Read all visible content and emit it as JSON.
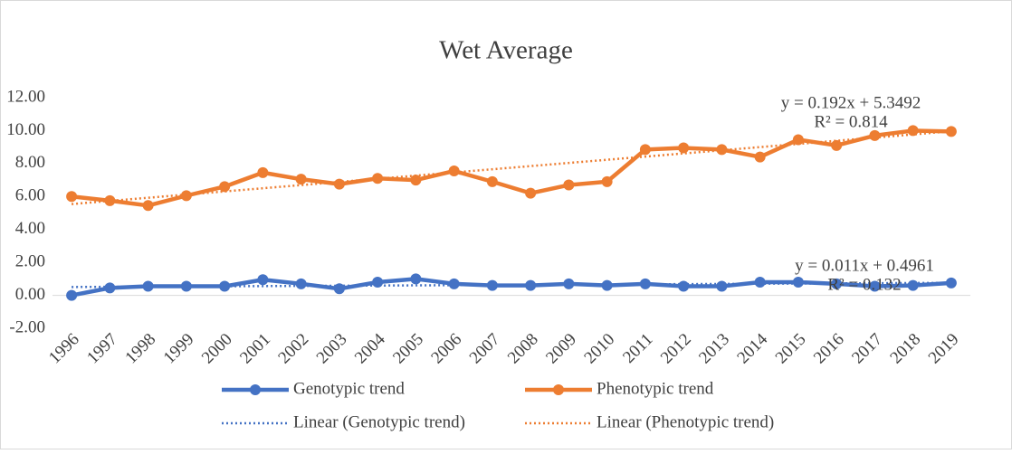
{
  "chart_data": {
    "type": "line",
    "title": "Wet Average",
    "categories": [
      "1996",
      "1997",
      "1998",
      "1999",
      "2000",
      "2001",
      "2002",
      "2003",
      "2004",
      "2005",
      "2006",
      "2007",
      "2008",
      "2009",
      "2010",
      "2011",
      "2012",
      "2013",
      "2014",
      "2015",
      "2016",
      "2017",
      "2018",
      "2019"
    ],
    "series": [
      {
        "name": "Genotypic trend",
        "color": "#4472c4",
        "values": [
          0.0,
          0.45,
          0.55,
          0.55,
          0.55,
          0.95,
          0.7,
          0.4,
          0.8,
          1.0,
          0.7,
          0.6,
          0.6,
          0.7,
          0.6,
          0.7,
          0.55,
          0.55,
          0.8,
          0.8,
          0.7,
          0.55,
          0.6,
          0.75
        ]
      },
      {
        "name": "Phenotypic trend",
        "color": "#ed7d31",
        "values": [
          6.0,
          5.75,
          5.45,
          6.05,
          6.6,
          7.45,
          7.05,
          6.75,
          7.1,
          7.0,
          7.55,
          6.9,
          6.2,
          6.7,
          6.9,
          8.85,
          8.95,
          8.85,
          8.4,
          9.45,
          9.1,
          9.7,
          10.0,
          9.95
        ]
      }
    ],
    "trendlines": [
      {
        "name": "Linear (Genotypic trend)",
        "color": "#4472c4",
        "equation": "y = 0.011x + 0.4961",
        "r2": "R² = 0.132",
        "values": [
          0.507,
          0.76
        ]
      },
      {
        "name": "Linear (Phenotypic trend)",
        "color": "#ed7d31",
        "equation": "y = 0.192x + 5.3492",
        "r2": "R² = 0.814",
        "values": [
          5.54,
          9.96
        ]
      }
    ],
    "ylim": [
      -2,
      12
    ],
    "yticks": [
      {
        "value": -2,
        "label": "-2.00"
      },
      {
        "value": 0,
        "label": "0.00"
      },
      {
        "value": 2,
        "label": "2.00"
      },
      {
        "value": 4,
        "label": "4.00"
      },
      {
        "value": 6,
        "label": "6.00"
      },
      {
        "value": 8,
        "label": "8.00"
      },
      {
        "value": 10,
        "label": "10.00"
      },
      {
        "value": 12,
        "label": "12.00"
      }
    ],
    "legend": "bottom"
  }
}
